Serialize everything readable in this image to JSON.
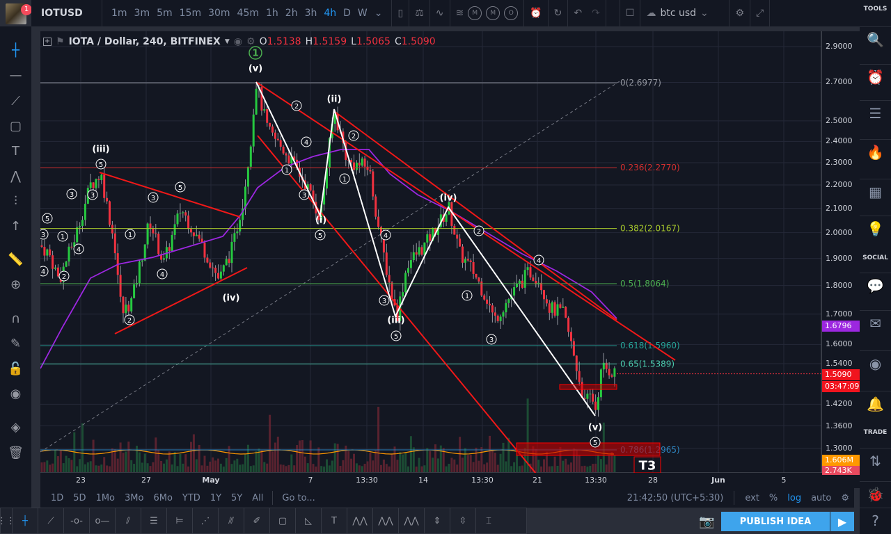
{
  "header": {
    "symbol": "IOTUSD",
    "notifications": "1",
    "timeframes": [
      "1m",
      "3m",
      "5m",
      "15m",
      "30m",
      "45m",
      "1h",
      "2h",
      "3h",
      "4h",
      "D",
      "W"
    ],
    "active_timeframe": "4h",
    "indicator_buttons": [
      "M",
      "M",
      "O"
    ],
    "layout_name": "btc usd"
  },
  "legend": {
    "title": "IOTA / Dollar, 240, BITFINEX",
    "o_label": "O",
    "o": "1.5138",
    "h_label": "H",
    "h": "1.5159",
    "l_label": "L",
    "l": "1.5065",
    "c_label": "C",
    "c": "1.5090"
  },
  "colors": {
    "up": "#26c940",
    "down": "#f0313f",
    "accent": "#2196f3",
    "ma": "#9c27e0",
    "background": "#131722"
  },
  "price_axis": {
    "scale": "log",
    "ticks": [
      "2.9000",
      "2.7000",
      "2.5000",
      "2.4000",
      "2.3000",
      "2.2000",
      "2.1000",
      "2.0000",
      "1.9000",
      "1.8000",
      "1.7000",
      "1.6000",
      "1.5400",
      "1.4200",
      "1.3600",
      "1.3000"
    ],
    "ma_value": "1.6796",
    "last_price": "1.5090",
    "countdown": "03:47:09",
    "volume_ma": "1.606M",
    "volume": "2.743K"
  },
  "time_axis": {
    "ticks": [
      "23",
      "27",
      "May",
      "7",
      "13:30",
      "14",
      "13:30",
      "21",
      "13:30",
      "28",
      "Jun",
      "5"
    ]
  },
  "fib": [
    {
      "label": "0(2.6977)",
      "price": 2.6977,
      "color": "#9598a1"
    },
    {
      "label": "0.236(2.2770)",
      "price": 2.277,
      "color": "#d32f2f"
    },
    {
      "label": "0.382(2.0167)",
      "price": 2.0167,
      "color": "#a8c92d"
    },
    {
      "label": "0.5(1.8064)",
      "price": 1.8064,
      "color": "#4caf50"
    },
    {
      "label": "0.618(1.5960)",
      "price": 1.596,
      "color": "#26a69a"
    },
    {
      "label": "0.65(1.5389)",
      "price": 1.5389,
      "color": "#4dd0b1"
    },
    {
      "label": "0.786(1.2965)",
      "price": 1.2965,
      "color": "#2e86c1"
    }
  ],
  "waves": [
    "(iii)",
    "(iv)",
    "(v)",
    "(i)",
    "(ii)",
    "(iii)",
    "(iv)",
    "(v)",
    "1",
    "T3"
  ],
  "range_bar": {
    "buttons": [
      "1D",
      "5D",
      "1Mo",
      "3Mo",
      "6Mo",
      "YTD",
      "1Y",
      "5Y",
      "All"
    ],
    "goto": "Go to...",
    "clock": "21:42:50 (UTC+5:30)",
    "ext": "ext",
    "percent": "%",
    "log": "log",
    "auto": "auto"
  },
  "publish": "PUBLISH IDEA",
  "sidebar": {
    "tools": "TOOLS",
    "social": "SOCIAL",
    "trade": "TRADE"
  }
}
